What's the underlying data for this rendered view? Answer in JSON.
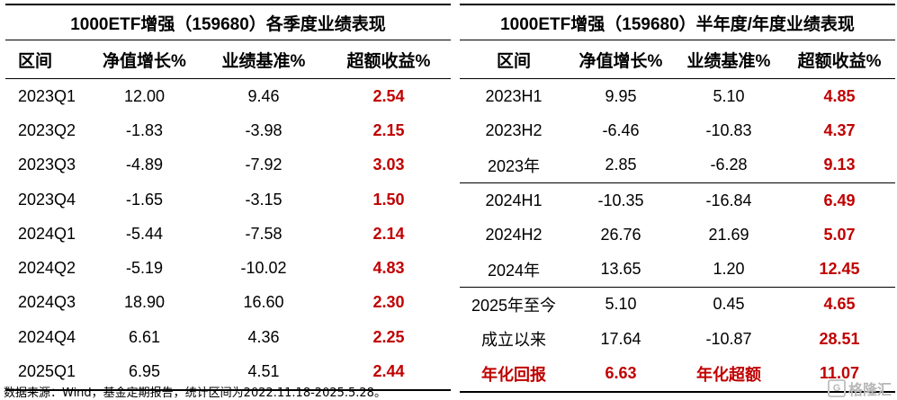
{
  "left": {
    "title": "1000ETF增强（159680）各季度业绩表现",
    "headers": [
      "区间",
      "净值增长%",
      "业绩基准%",
      "超额收益%"
    ],
    "rows": [
      [
        "2023Q1",
        "12.00",
        "9.46",
        "2.54"
      ],
      [
        "2023Q2",
        "-1.83",
        "-3.98",
        "2.15"
      ],
      [
        "2023Q3",
        "-4.89",
        "-7.92",
        "3.03"
      ],
      [
        "2023Q4",
        "-1.65",
        "-3.15",
        "1.50"
      ],
      [
        "2024Q1",
        "-5.44",
        "-7.58",
        "2.14"
      ],
      [
        "2024Q2",
        "-5.19",
        "-10.02",
        "4.83"
      ],
      [
        "2024Q3",
        "18.90",
        "16.60",
        "2.30"
      ],
      [
        "2024Q4",
        "6.61",
        "4.36",
        "2.25"
      ],
      [
        "2025Q1",
        "6.95",
        "4.51",
        "2.44"
      ]
    ]
  },
  "right": {
    "title": "1000ETF增强（159680）半年度/年度业绩表现",
    "headers": [
      "区间",
      "净值增长%",
      "业绩基准%",
      "超额收益%"
    ],
    "rows": [
      [
        "2023H1",
        "9.95",
        "5.10",
        "4.85"
      ],
      [
        "2023H2",
        "-6.46",
        "-10.83",
        "4.37"
      ],
      [
        "2023年",
        "2.85",
        "-6.28",
        "9.13"
      ],
      [
        "2024H1",
        "-10.35",
        "-16.84",
        "6.49"
      ],
      [
        "2024H2",
        "26.76",
        "21.69",
        "5.07"
      ],
      [
        "2024年",
        "13.65",
        "1.20",
        "12.45"
      ],
      [
        "2025年至今",
        "5.10",
        "0.45",
        "4.65"
      ],
      [
        "成立以来",
        "17.64",
        "-10.87",
        "28.51"
      ]
    ],
    "annual_row": [
      "年化回报",
      "6.63",
      "年化超额",
      "11.07"
    ]
  },
  "source": "数据来源：Wind，基金定期报告，统计区间为2022.11.18-2025.5.28。",
  "watermark": {
    "logo": "G",
    "text": "格隆汇"
  },
  "colors": {
    "excess": "#c00000",
    "rule": "#000000"
  }
}
